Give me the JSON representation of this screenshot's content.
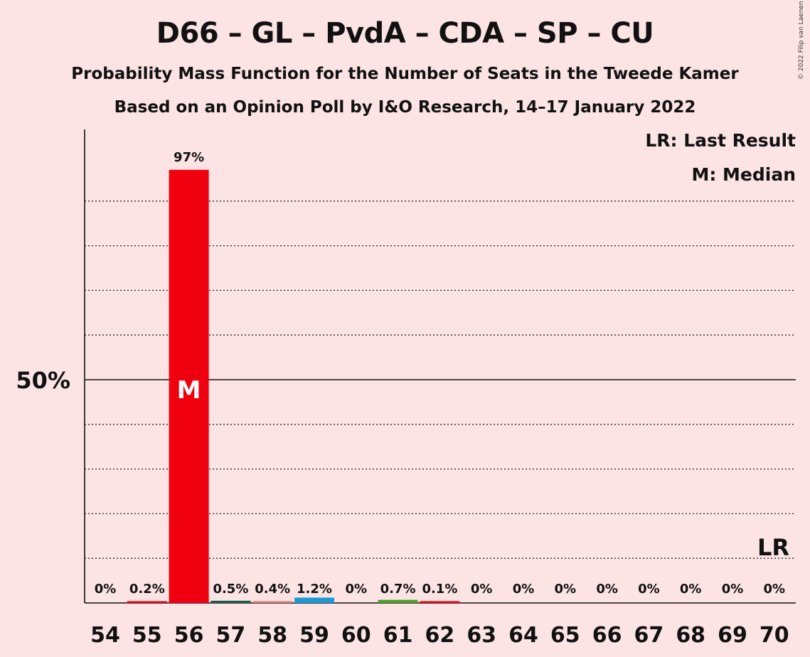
{
  "header": {
    "title": "D66 – GL – PvdA – CDA – SP – CU",
    "subtitle": "Probability Mass Function for the Number of Seats in the Tweede Kamer",
    "subtitle2": "Based on an Opinion Poll by I&O Research, 14–17 January 2022",
    "copyright": "© 2022 Filip van Laenen"
  },
  "legend": {
    "last_result": "LR: Last Result",
    "median": "M: Median"
  },
  "colors": {
    "background": "#fce4e4",
    "median_bar": "#f0000f",
    "bar_57": "#1a5c4a",
    "bar_58": "#e87a7a",
    "bar_59": "#1c9ad6",
    "bar_61": "#4e9e2a",
    "bar_default": "#f0000f"
  },
  "chart_data": {
    "type": "bar",
    "categories": [
      "54",
      "55",
      "56",
      "57",
      "58",
      "59",
      "60",
      "61",
      "62",
      "63",
      "64",
      "65",
      "66",
      "67",
      "68",
      "69",
      "70"
    ],
    "values": [
      0,
      0.2,
      97,
      0.5,
      0.4,
      1.2,
      0,
      0.7,
      0.1,
      0,
      0,
      0,
      0,
      0,
      0,
      0,
      0
    ],
    "labels": [
      "0%",
      "0.2%",
      "97%",
      "0.5%",
      "0.4%",
      "1.2%",
      "0%",
      "0.7%",
      "0.1%",
      "0%",
      "0%",
      "0%",
      "0%",
      "0%",
      "0%",
      "0%",
      "0%"
    ],
    "ylim": [
      0,
      100
    ],
    "ytick_label": "50%",
    "ytick_value": 50,
    "grid_values": [
      10,
      20,
      30,
      40,
      60,
      70,
      80,
      90
    ],
    "median_seat": "56",
    "median_marker": "M",
    "last_result_seat": "70",
    "last_result_marker": "LR",
    "last_result_value": 10
  }
}
